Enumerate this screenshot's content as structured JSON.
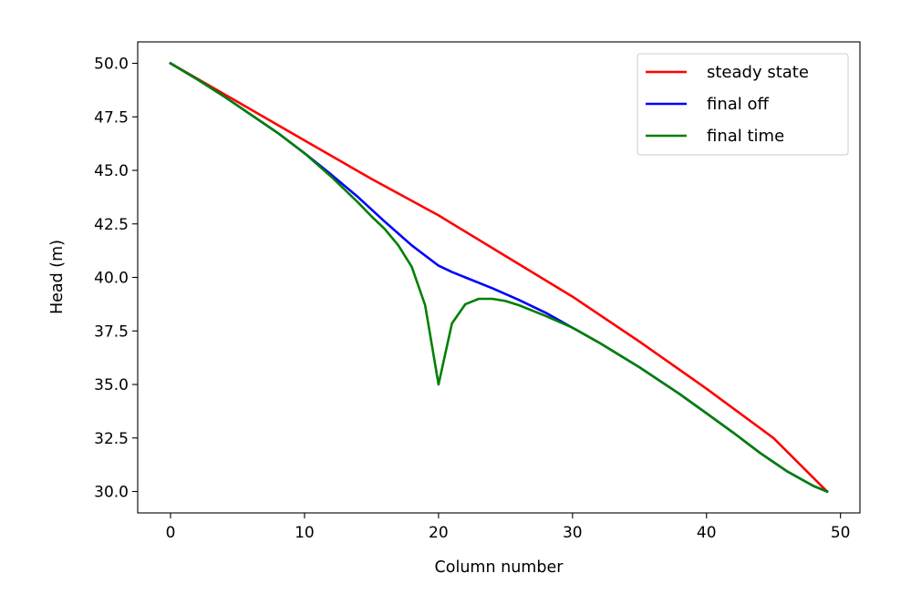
{
  "chart_data": {
    "type": "line",
    "xlabel": "Column number",
    "ylabel": "Head (m)",
    "xlim": [
      -2.45,
      51.45
    ],
    "ylim": [
      29.0,
      51.0
    ],
    "xticks": [
      0,
      10,
      20,
      30,
      40,
      50
    ],
    "yticks": [
      30.0,
      32.5,
      35.0,
      37.5,
      40.0,
      42.5,
      45.0,
      47.5,
      50.0
    ],
    "xtick_labels": [
      "0",
      "10",
      "20",
      "30",
      "40",
      "50"
    ],
    "ytick_labels": [
      "30.0",
      "32.5",
      "35.0",
      "37.5",
      "40.0",
      "42.5",
      "45.0",
      "47.5",
      "50.0"
    ],
    "grid": false,
    "legend_position": "top-right",
    "series": [
      {
        "name": "steady state",
        "color": "#ff0000",
        "x": [
          0,
          5,
          10,
          15,
          20,
          25,
          30,
          35,
          40,
          45,
          49
        ],
        "y": [
          50.0,
          48.2,
          46.4,
          44.6,
          42.9,
          41.0,
          39.1,
          37.0,
          34.8,
          32.5,
          30.0
        ]
      },
      {
        "name": "final off",
        "color": "#0000ff",
        "x": [
          0,
          2,
          4,
          6,
          8,
          10,
          12,
          14,
          16,
          18,
          20,
          21,
          22,
          24,
          26,
          28,
          30,
          32,
          35,
          38,
          40,
          42,
          44,
          46,
          48,
          49
        ],
        "y": [
          50.0,
          49.25,
          48.45,
          47.6,
          46.75,
          45.8,
          44.8,
          43.75,
          42.6,
          41.5,
          40.55,
          40.25,
          40.0,
          39.5,
          38.95,
          38.35,
          37.65,
          36.95,
          35.8,
          34.55,
          33.65,
          32.75,
          31.8,
          30.95,
          30.25,
          30.0
        ]
      },
      {
        "name": "final time",
        "color": "#008000",
        "x": [
          0,
          2,
          4,
          6,
          8,
          10,
          12,
          14,
          15,
          16,
          17,
          18,
          19,
          20,
          21,
          22,
          23,
          24,
          25,
          26,
          28,
          30,
          32,
          35,
          38,
          40,
          42,
          44,
          46,
          48,
          49
        ],
        "y": [
          50.0,
          49.25,
          48.45,
          47.6,
          46.75,
          45.8,
          44.7,
          43.5,
          42.85,
          42.25,
          41.5,
          40.5,
          38.7,
          35.0,
          37.85,
          38.75,
          39.0,
          39.0,
          38.9,
          38.7,
          38.2,
          37.65,
          36.95,
          35.8,
          34.55,
          33.65,
          32.75,
          31.8,
          30.95,
          30.25,
          30.0
        ]
      }
    ]
  }
}
